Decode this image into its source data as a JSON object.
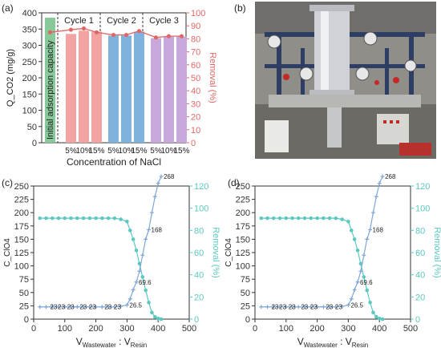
{
  "panels": {
    "a": {
      "label": "(a)"
    },
    "b": {
      "label": "(b)"
    },
    "c": {
      "label": "(c)"
    },
    "d": {
      "label": "(d)"
    }
  },
  "colors": {
    "removal_red": "#e06666",
    "bar_initial": "#88c99a",
    "bar_cycle1": "#f4a3a3",
    "bar_cycle2": "#7fb2dc",
    "bar_cycle3": "#c9a8dc",
    "teal": "#5cc8c0",
    "blue_line": "#7ea6d6"
  },
  "chart_data": [
    {
      "type": "bar",
      "panel": "a",
      "ylabel_left": "Q_CO2 (mg/g)",
      "ylabel_right": "Removal (%)",
      "xlabel": "Concentration of NaCl",
      "ylim_left": [
        0,
        400
      ],
      "ylim_right": [
        0,
        100
      ],
      "yticks_left": [
        0,
        50,
        100,
        150,
        200,
        250,
        300,
        350,
        400
      ],
      "yticks_right": [
        0,
        10,
        20,
        30,
        40,
        50,
        60,
        70,
        80,
        90,
        100
      ],
      "initial_label": "Initial adsorption capacity",
      "groups": [
        "Cycle 1",
        "Cycle 2",
        "Cycle 3"
      ],
      "categories": [
        "5%",
        "10%",
        "15%"
      ],
      "initial_value": 385,
      "series": [
        {
          "values": [
            335,
            345,
            342
          ]
        },
        {
          "values": [
            330,
            330,
            342
          ]
        },
        {
          "values": [
            322,
            327,
            327
          ]
        }
      ],
      "removal": [
        85,
        87,
        88,
        85,
        83,
        83,
        86,
        81,
        82,
        82
      ]
    },
    {
      "type": "line",
      "panel": "c",
      "xlabel_main": "V",
      "xlabel_sub1": "Wastewater",
      "xlabel_sep": " : V",
      "xlabel_sub2": "Resin",
      "ylabel_left": "C_ClO4",
      "ylabel_right": "Removal (%)",
      "xlim": [
        0,
        500
      ],
      "ylim_left": [
        0,
        250
      ],
      "ylim_right": [
        0,
        120
      ],
      "xticks": [
        0,
        100,
        200,
        300,
        400,
        500
      ],
      "yticks_left": [
        0,
        25,
        50,
        75,
        100,
        125,
        150,
        175,
        200,
        225,
        250
      ],
      "yticks_right": [
        0,
        20,
        40,
        60,
        80,
        100,
        120
      ],
      "concentration": {
        "x": [
          20,
          40,
          60,
          80,
          100,
          120,
          140,
          160,
          180,
          200,
          220,
          240,
          260,
          280,
          300,
          310,
          320,
          330,
          340,
          350,
          360,
          370,
          380,
          390,
          400,
          410
        ],
        "y": [
          23,
          23,
          23,
          23,
          23,
          23,
          23,
          23,
          23,
          23,
          23,
          23,
          23,
          24,
          26.5,
          38,
          55,
          69.6,
          90,
          120,
          150,
          168,
          200,
          230,
          255,
          268
        ]
      },
      "removal": {
        "x": [
          20,
          40,
          60,
          80,
          100,
          120,
          140,
          160,
          180,
          200,
          220,
          240,
          260,
          280,
          300,
          310,
          320,
          330,
          340,
          350,
          360,
          370,
          380,
          390,
          400,
          410
        ],
        "y": [
          91,
          91,
          91,
          91,
          91,
          91,
          91,
          91,
          91,
          91,
          91,
          91,
          91,
          90,
          88,
          80,
          72,
          62,
          50,
          38,
          26,
          15,
          6,
          2,
          0.5,
          0
        ]
      },
      "annotations": [
        {
          "x": 45,
          "y": 23,
          "text": "23"
        },
        {
          "x": 70,
          "y": 23,
          "text": "23"
        },
        {
          "x": 100,
          "y": 23,
          "text": "23"
        },
        {
          "x": 140,
          "y": 23,
          "text": "23"
        },
        {
          "x": 170,
          "y": 23,
          "text": "23"
        },
        {
          "x": 220,
          "y": 23,
          "text": "23"
        },
        {
          "x": 250,
          "y": 23,
          "text": "23"
        },
        {
          "x": 300,
          "y": 26.5,
          "text": "26.5"
        },
        {
          "x": 330,
          "y": 69.6,
          "text": "69.6"
        },
        {
          "x": 370,
          "y": 168,
          "text": "168"
        },
        {
          "x": 410,
          "y": 268,
          "text": "268"
        }
      ]
    },
    {
      "type": "line",
      "panel": "d",
      "xlabel_main": "V",
      "xlabel_sub1": "Wastewater",
      "xlabel_sep": " : V",
      "xlabel_sub2": "Resin",
      "ylabel_left": "C_ClO4",
      "ylabel_right": "Removal (%)",
      "xlim": [
        0,
        500
      ],
      "ylim_left": [
        0,
        250
      ],
      "ylim_right": [
        0,
        120
      ],
      "xticks": [
        0,
        100,
        200,
        300,
        400,
        500
      ],
      "yticks_left": [
        0,
        25,
        50,
        75,
        100,
        125,
        150,
        175,
        200,
        225,
        250
      ],
      "yticks_right": [
        0,
        20,
        40,
        60,
        80,
        100,
        120
      ],
      "concentration": {
        "x": [
          20,
          40,
          60,
          80,
          100,
          120,
          140,
          160,
          180,
          200,
          220,
          240,
          260,
          280,
          300,
          310,
          320,
          330,
          340,
          350,
          360,
          370,
          380,
          390,
          400,
          410
        ],
        "y": [
          23,
          23,
          23,
          23,
          23,
          23,
          23,
          23,
          23,
          23,
          23,
          23,
          23,
          24,
          26.5,
          38,
          55,
          69.6,
          90,
          120,
          150,
          168,
          200,
          230,
          255,
          268
        ]
      },
      "removal": {
        "x": [
          20,
          40,
          60,
          80,
          100,
          120,
          140,
          160,
          180,
          200,
          220,
          240,
          260,
          280,
          300,
          310,
          320,
          330,
          340,
          350,
          360,
          370,
          380,
          390,
          400,
          410
        ],
        "y": [
          91,
          91,
          91,
          91,
          91,
          91,
          91,
          91,
          91,
          91,
          91,
          91,
          91,
          90,
          88,
          80,
          72,
          62,
          50,
          38,
          26,
          15,
          6,
          2,
          0.5,
          0
        ]
      },
      "annotations": [
        {
          "x": 45,
          "y": 23,
          "text": "23"
        },
        {
          "x": 70,
          "y": 23,
          "text": "23"
        },
        {
          "x": 100,
          "y": 23,
          "text": "23"
        },
        {
          "x": 140,
          "y": 23,
          "text": "23"
        },
        {
          "x": 170,
          "y": 23,
          "text": "23"
        },
        {
          "x": 220,
          "y": 23,
          "text": "23"
        },
        {
          "x": 250,
          "y": 23,
          "text": "23"
        },
        {
          "x": 300,
          "y": 26.5,
          "text": "26.5"
        },
        {
          "x": 330,
          "y": 69.6,
          "text": "69.6"
        },
        {
          "x": 370,
          "y": 168,
          "text": "168"
        },
        {
          "x": 410,
          "y": 268,
          "text": "268"
        }
      ]
    }
  ]
}
